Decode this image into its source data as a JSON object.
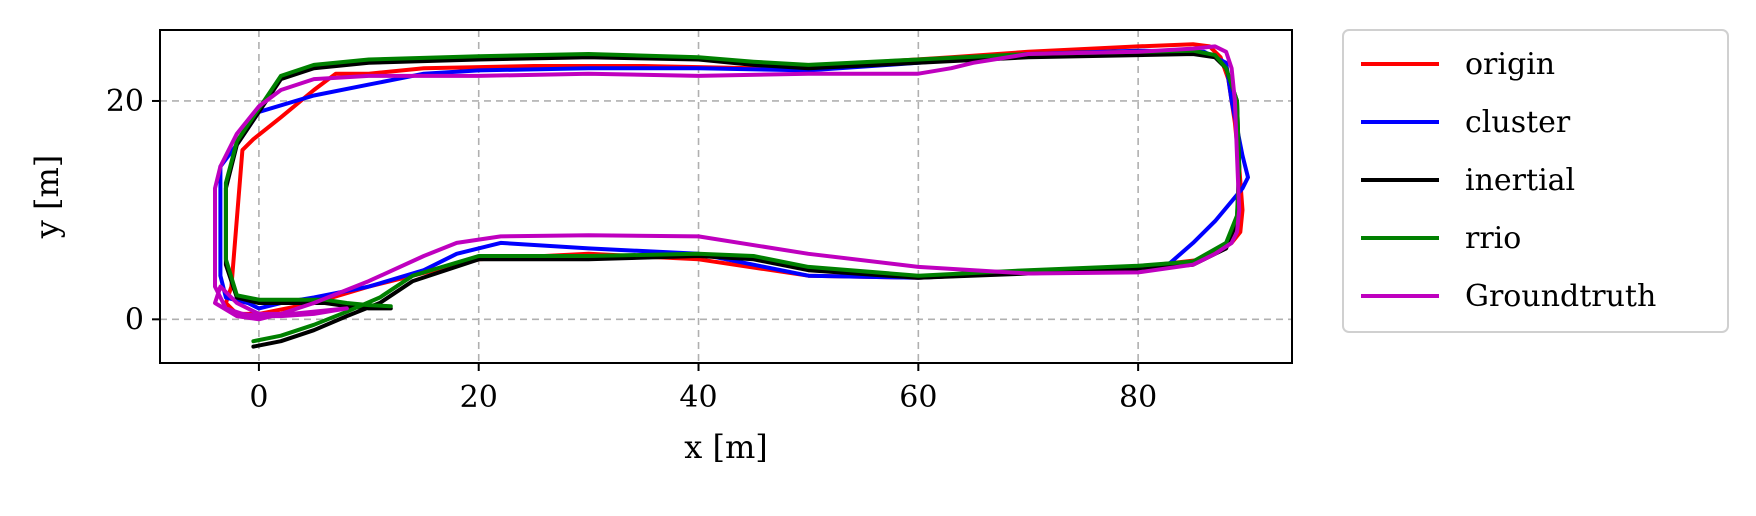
{
  "chart_data": {
    "type": "line",
    "xlabel": "x [m]",
    "ylabel": "y [m]",
    "xlim": [
      -9,
      94
    ],
    "ylim": [
      -4,
      26.5
    ],
    "xticks": [
      0,
      20,
      40,
      60,
      80
    ],
    "yticks": [
      0,
      20
    ],
    "grid": true,
    "legend_position": "outside-right",
    "series": [
      {
        "name": "origin",
        "color": "#ff0000",
        "x": [
          -2.5,
          -1.5,
          -0.5,
          2,
          5,
          7,
          10,
          15,
          25,
          35,
          45,
          55,
          63,
          70,
          80,
          85,
          86.5,
          87.5,
          88.2,
          88.8,
          89.2,
          89.5,
          89.3,
          88.5,
          86,
          80,
          70,
          60,
          50,
          40,
          30,
          20,
          10,
          5,
          0,
          -2,
          -3,
          -2.5
        ],
        "y": [
          3,
          15.5,
          16.5,
          18.5,
          21,
          22.5,
          22.5,
          23,
          23.2,
          23.2,
          23,
          23.5,
          24,
          24.5,
          25,
          25.2,
          25,
          24,
          22,
          18,
          14,
          10,
          8,
          7,
          5.5,
          4.8,
          4.3,
          3.8,
          4,
          5.5,
          6,
          5.5,
          3,
          1.5,
          0.5,
          0.5,
          1.5,
          3
        ]
      },
      {
        "name": "cluster",
        "color": "#0000ff",
        "x": [
          -3.5,
          -3.5,
          -2,
          0,
          5,
          10,
          15,
          20,
          30,
          40,
          50,
          60,
          70,
          80,
          86,
          88,
          88.5,
          89.5,
          90,
          89.5,
          87,
          85,
          82.5,
          75,
          70,
          60,
          50,
          45,
          40,
          30,
          22,
          18,
          15,
          10,
          5,
          2,
          0,
          -1,
          -3,
          -3.5
        ],
        "y": [
          4,
          14,
          16,
          19,
          20.5,
          21.5,
          22.5,
          22.8,
          23,
          23,
          22.8,
          23.5,
          24.3,
          24.6,
          24.5,
          23.5,
          20,
          15,
          13,
          12,
          9,
          7,
          4.8,
          4.5,
          4.3,
          3.8,
          4,
          5,
          6,
          6.5,
          7,
          6,
          4.5,
          3,
          2,
          1.5,
          1,
          1.5,
          2,
          4
        ]
      },
      {
        "name": "inertial",
        "color": "#000000",
        "x": [
          -0.5,
          2,
          5,
          8,
          11,
          14,
          20,
          30,
          40,
          45,
          50,
          60,
          70,
          80,
          85,
          88,
          89,
          89.2,
          89,
          88,
          87,
          85,
          80,
          70,
          60,
          50,
          45,
          40,
          30,
          20,
          10,
          5,
          2,
          0,
          -2,
          -3,
          -3,
          -2,
          0,
          3,
          6,
          8,
          10,
          12
        ],
        "y": [
          -2.5,
          -2,
          -1,
          0.3,
          1.5,
          3.5,
          5.5,
          5.5,
          5.8,
          5.5,
          4.5,
          3.8,
          4.2,
          4.6,
          5,
          6.5,
          9,
          14,
          20,
          23,
          24,
          24.3,
          24.2,
          24,
          23.5,
          23,
          23.3,
          23.8,
          24,
          23.8,
          23.5,
          23,
          22,
          19,
          16,
          12,
          5,
          2,
          1.5,
          1.5,
          1.5,
          1.2,
          1,
          1
        ]
      },
      {
        "name": "rrio",
        "color": "#008000",
        "x": [
          -0.5,
          2,
          5,
          8,
          11,
          14,
          20,
          30,
          40,
          45,
          50,
          60,
          70,
          80,
          85,
          88,
          89,
          89.2,
          89,
          88,
          87,
          85,
          80,
          70,
          60,
          50,
          45,
          40,
          30,
          20,
          10,
          5,
          2,
          0,
          -2,
          -3,
          -3,
          -2,
          0,
          3,
          6,
          8,
          10,
          12
        ],
        "y": [
          -2,
          -1.5,
          -0.5,
          0.7,
          2,
          4,
          5.8,
          5.8,
          6,
          5.8,
          4.8,
          4,
          4.5,
          4.9,
          5.3,
          7,
          9.5,
          14,
          20,
          23,
          24.2,
          24.6,
          24.5,
          24.3,
          23.8,
          23.3,
          23.6,
          24,
          24.3,
          24.1,
          23.8,
          23.3,
          22.3,
          19.3,
          16.3,
          12.5,
          5.5,
          2.2,
          1.8,
          1.8,
          1.8,
          1.5,
          1.3,
          1.2
        ]
      },
      {
        "name": "Groundtruth",
        "color": "#bf00bf",
        "x": [
          8,
          5,
          2,
          0,
          -1.5,
          -3,
          -4,
          -4,
          -3.5,
          -2,
          0,
          2,
          5,
          10,
          20,
          30,
          40,
          50,
          60,
          63,
          65,
          70,
          80,
          85,
          87,
          88,
          88.5,
          88.8,
          89,
          89.2,
          89,
          88.5,
          87,
          85,
          80,
          70,
          60,
          50,
          40,
          30,
          22,
          18,
          15,
          10,
          5,
          2,
          0,
          -2,
          -4,
          -3.5,
          -2,
          0,
          3,
          8
        ],
        "y": [
          1,
          0.5,
          0.3,
          0.3,
          0.5,
          1,
          3,
          12,
          14,
          17,
          19.5,
          21,
          22,
          22.3,
          22.3,
          22.5,
          22.3,
          22.5,
          22.5,
          23,
          23.5,
          24.3,
          24.5,
          24.8,
          25,
          24.5,
          23,
          20,
          15,
          10,
          8,
          7,
          6,
          5,
          4.3,
          4.2,
          4.8,
          6,
          7.6,
          7.7,
          7.6,
          7,
          5.8,
          3.5,
          1.5,
          0.5,
          0,
          0.3,
          1.5,
          3,
          1.5,
          0.5,
          0.5,
          1
        ]
      }
    ]
  }
}
